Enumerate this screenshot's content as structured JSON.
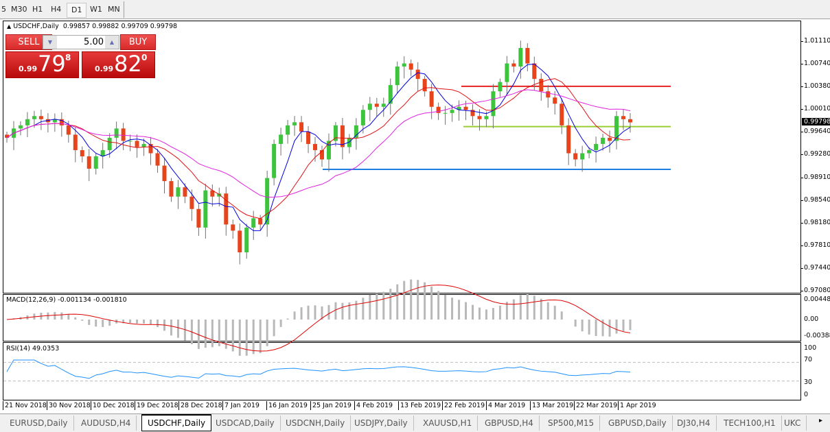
{
  "timeframes": [
    {
      "label": "5"
    },
    {
      "label": "M30"
    },
    {
      "label": "H1"
    },
    {
      "label": "H4"
    },
    {
      "label": "D1",
      "active": true
    },
    {
      "label": "W1"
    },
    {
      "label": "MN"
    }
  ],
  "chart": {
    "symbol_title": "USDCHF,Daily",
    "ohlc_header": "0.99857 0.99882 0.99709 0.99798",
    "current_price": "0.99798",
    "price_ticks": [
      "1.01110",
      "1.00740",
      "1.00380",
      "1.00010",
      "0.99640",
      "0.99280",
      "0.98910",
      "0.98540",
      "0.98180",
      "0.97810",
      "0.97440",
      "0.97080"
    ],
    "dates": [
      "21 Nov 2018",
      "30 Nov 2018",
      "10 Dec 2018",
      "19 Dec 2018",
      "28 Dec 2018",
      "7 Jan 2019",
      "16 Jan 2019",
      "25 Jan 2019",
      "4 Feb 2019",
      "13 Feb 2019",
      "22 Feb 2019",
      "4 Mar 2019",
      "13 Mar 2019",
      "22 Mar 2019",
      "1 Apr 2019"
    ],
    "colors": {
      "bull": "#3cc43c",
      "bear": "#e8441c",
      "ma_fast": "#0000e0",
      "ma_mid": "#e01010",
      "ma_slow": "#e020e0",
      "macd_hist": "#b8b8b8",
      "macd_signal": "#e00000",
      "rsi": "#1e90ff"
    },
    "horizontal_lines": [
      {
        "price": 1.0038,
        "color": "#e82020"
      },
      {
        "price": 0.9973,
        "color": "#9acd32"
      },
      {
        "price": 0.9904,
        "color": "#1e7fe0"
      }
    ]
  },
  "chart_data": {
    "type": "candlestick",
    "closes": [
      0.9955,
      0.997,
      0.9975,
      0.9985,
      0.999,
      0.9985,
      0.998,
      0.9985,
      0.9975,
      0.996,
      0.9935,
      0.9925,
      0.9905,
      0.9925,
      0.9935,
      0.9955,
      0.997,
      0.995,
      0.995,
      0.994,
      0.9945,
      0.993,
      0.991,
      0.9885,
      0.986,
      0.9875,
      0.986,
      0.984,
      0.981,
      0.987,
      0.986,
      0.9865,
      0.9815,
      0.9805,
      0.977,
      0.981,
      0.9825,
      0.9815,
      0.989,
      0.9945,
      0.996,
      0.9975,
      0.998,
      0.9965,
      0.9945,
      0.9935,
      0.992,
      0.995,
      0.9975,
      0.994,
      0.9955,
      0.9975,
      1.0,
      1.001,
      1.0005,
      1.001,
      1.004,
      1.007,
      1.0075,
      1.0065,
      1.005,
      1.003,
      1.0005,
      0.9995,
      0.9995,
      1.0,
      1.0005,
      1.0,
      0.999,
      0.9985,
      0.999,
      1.003,
      1.0045,
      1.0075,
      1.007,
      1.01,
      1.0075,
      1.005,
      1.003,
      1.002,
      1.001,
      0.9975,
      0.993,
      0.992,
      0.993,
      0.9935,
      0.9945,
      0.9955,
      0.995,
      0.999,
      0.9985,
      0.99798
    ],
    "ylim": [
      0.9708,
      1.0111
    ]
  },
  "indicators": {
    "macd": {
      "label": "MACD(12,26,9) -0.001134 -0.001810",
      "ticks": [
        "0.004487",
        "0.00",
        "-0.003883"
      ]
    },
    "rsi": {
      "label": "RSI(14) 49.0353",
      "ticks": [
        "100",
        "70",
        "30",
        "0"
      ]
    }
  },
  "tabs": [
    {
      "label": "EURUSD,Daily"
    },
    {
      "label": "AUDUSD,H4"
    },
    {
      "label": "USDCHF,Daily",
      "active": true
    },
    {
      "label": "USDCAD,Daily"
    },
    {
      "label": "USDCNH,Daily"
    },
    {
      "label": "USDJPY,Daily"
    },
    {
      "label": "XAUUSD,H1"
    },
    {
      "label": "GBPUSD,H4"
    },
    {
      "label": "SP500,M15"
    },
    {
      "label": "GBPUSD,Daily"
    },
    {
      "label": "DJ30,H4"
    },
    {
      "label": "TECH100,H1"
    },
    {
      "label": "UKC"
    }
  ],
  "trade": {
    "sell_label": "SELL",
    "buy_label": "BUY",
    "lot": "5.00",
    "sell_small": "0.99",
    "sell_big": "79",
    "sell_sup": "8",
    "buy_small": "0.99",
    "buy_big": "82",
    "buy_sup": "0"
  }
}
